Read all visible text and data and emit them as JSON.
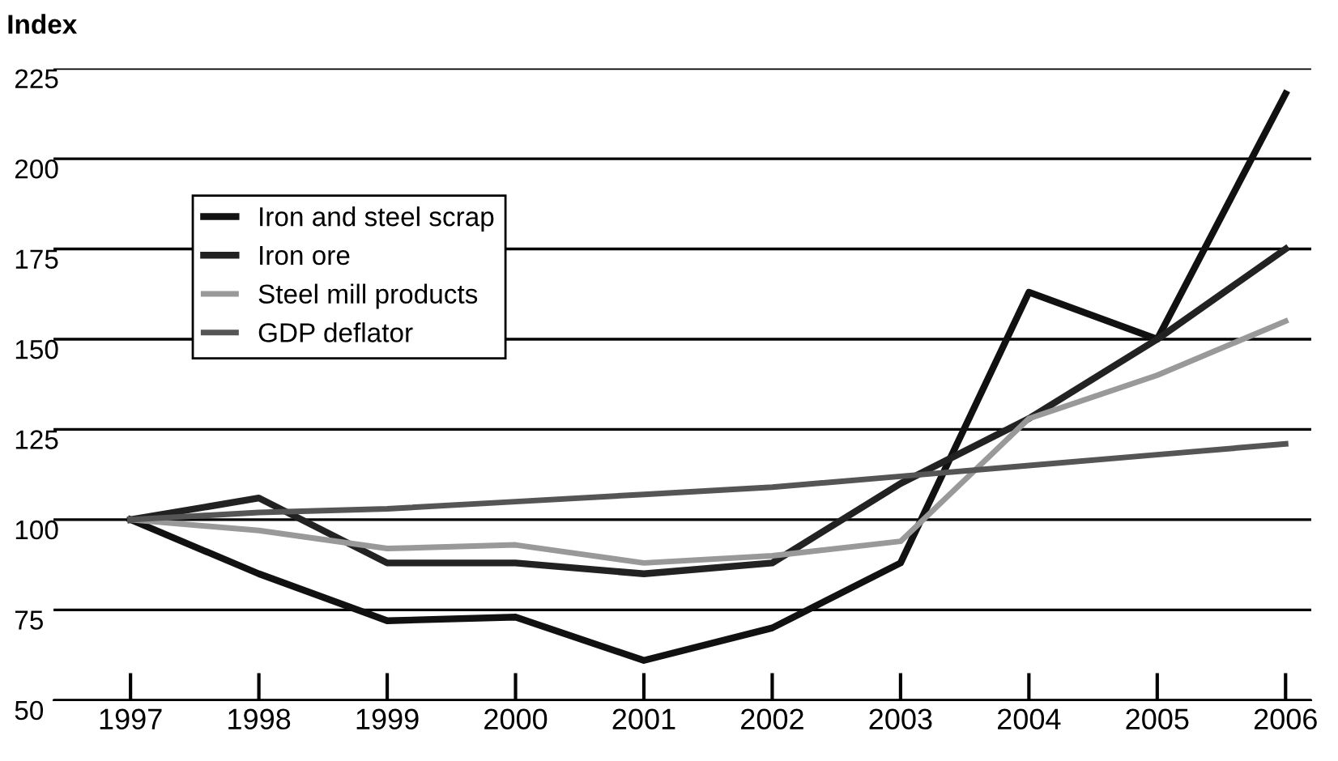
{
  "chart_data": {
    "type": "line",
    "ylabel": "Index",
    "categories": [
      "1997",
      "1998",
      "1999",
      "2000",
      "2001",
      "2002",
      "2003",
      "2004",
      "2005",
      "2006"
    ],
    "series": [
      {
        "name": "Iron and steel scrap",
        "color": "#111111",
        "values": [
          100,
          85,
          72,
          73,
          61,
          70,
          88,
          163,
          150,
          218
        ]
      },
      {
        "name": "Iron ore",
        "color": "#222222",
        "values": [
          100,
          106,
          88,
          88,
          85,
          88,
          110,
          128,
          150,
          175
        ]
      },
      {
        "name": "Steel mill products",
        "color": "#999999",
        "values": [
          100,
          97,
          92,
          93,
          88,
          90,
          94,
          128,
          140,
          155
        ]
      },
      {
        "name": "GDP deflator",
        "color": "#555555",
        "values": [
          100,
          102,
          103,
          105,
          107,
          109,
          112,
          115,
          118,
          121
        ]
      }
    ],
    "ylim": [
      50,
      225
    ],
    "yticks": [
      50,
      75,
      100,
      125,
      150,
      175,
      200,
      225
    ],
    "grid": "y",
    "legend": "top left",
    "marker": "none",
    "line_style": "solid"
  }
}
